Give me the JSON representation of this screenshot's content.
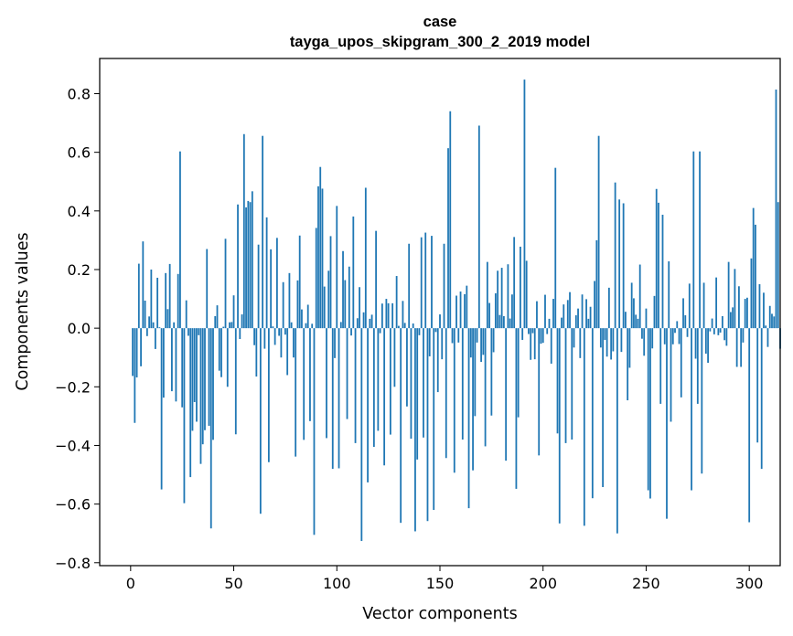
{
  "chart_data": {
    "type": "bar",
    "title": "case",
    "subtitle": "tayga_upos_skipgram_300_2_2019 model",
    "xlabel": "Vector components",
    "ylabel": "Components values",
    "xlim": [
      -15,
      315
    ],
    "ylim": [
      -0.81,
      0.92
    ],
    "x_ticks": [
      0,
      50,
      100,
      150,
      200,
      250,
      300
    ],
    "y_ticks": [
      -0.8,
      -0.6,
      -0.4,
      -0.2,
      0.0,
      0.2,
      0.4,
      0.6,
      0.8
    ],
    "x_tick_labels": [
      "0",
      "50",
      "100",
      "150",
      "200",
      "250",
      "300"
    ],
    "y_tick_labels": [
      "−0.8",
      "−0.6",
      "−0.4",
      "−0.2",
      "0.0",
      "0.2",
      "0.4",
      "0.6",
      "0.8"
    ],
    "bar_color": "#1f77b4",
    "grid": false,
    "values": [
      0.0,
      -0.163,
      -0.323,
      -0.168,
      0.22,
      -0.13,
      0.296,
      0.094,
      -0.027,
      0.04,
      0.2,
      0.02,
      -0.071,
      0.172,
      0.003,
      -0.55,
      -0.237,
      0.188,
      0.065,
      0.219,
      -0.215,
      0.02,
      -0.25,
      0.185,
      0.603,
      -0.27,
      -0.597,
      0.095,
      -0.026,
      -0.508,
      -0.35,
      -0.252,
      -0.319,
      -0.024,
      -0.463,
      -0.396,
      -0.348,
      0.27,
      -0.333,
      -0.683,
      -0.381,
      0.041,
      0.078,
      -0.145,
      -0.167,
      0.005,
      0.305,
      -0.2,
      0.02,
      0.021,
      0.112,
      -0.362,
      0.422,
      -0.037,
      0.047,
      0.662,
      0.412,
      0.434,
      0.43,
      0.467,
      -0.058,
      -0.165,
      0.285,
      -0.633,
      0.656,
      -0.07,
      0.378,
      -0.457,
      0.269,
      0.006,
      -0.057,
      0.308,
      -0.026,
      -0.1,
      0.157,
      -0.022,
      -0.16,
      0.188,
      0.02,
      -0.1,
      -0.438,
      0.163,
      0.316,
      0.064,
      -0.381,
      0.017,
      0.08,
      -0.317,
      0.015,
      -0.705,
      0.342,
      0.484,
      0.55,
      0.476,
      0.142,
      -0.375,
      0.196,
      0.314,
      -0.48,
      -0.102,
      0.417,
      -0.478,
      0.021,
      0.263,
      0.164,
      -0.31,
      0.21,
      -0.025,
      0.381,
      -0.392,
      0.034,
      0.14,
      -0.726,
      0.054,
      0.479,
      -0.526,
      0.032,
      0.046,
      -0.405,
      0.332,
      -0.35,
      -0.017,
      0.084,
      -0.468,
      0.1,
      0.085,
      -0.363,
      0.085,
      -0.2,
      0.178,
      0.008,
      -0.664,
      0.093,
      0.018,
      -0.267,
      0.288,
      -0.377,
      0.016,
      -0.693,
      -0.448,
      -0.024,
      0.31,
      -0.373,
      0.326,
      -0.658,
      -0.096,
      0.315,
      -0.62,
      -0.013,
      -0.218,
      0.047,
      -0.106,
      0.288,
      -0.443,
      0.614,
      0.74,
      -0.051,
      -0.493,
      0.111,
      -0.049,
      0.125,
      -0.38,
      0.116,
      0.145,
      -0.614,
      -0.1,
      -0.485,
      -0.3,
      -0.049,
      0.691,
      -0.115,
      -0.091,
      -0.403,
      0.226,
      0.086,
      -0.298,
      -0.082,
      0.119,
      0.196,
      0.045,
      0.206,
      0.041,
      -0.452,
      0.218,
      0.033,
      0.115,
      0.311,
      -0.548,
      -0.304,
      0.278,
      -0.04,
      0.848,
      0.23,
      -0.02,
      -0.108,
      -0.017,
      -0.106,
      0.092,
      -0.434,
      -0.053,
      -0.05,
      0.114,
      -0.02,
      0.032,
      -0.121,
      0.1,
      0.547,
      -0.359,
      -0.666,
      0.036,
      0.081,
      -0.392,
      0.096,
      0.123,
      -0.38,
      -0.066,
      0.044,
      0.067,
      -0.102,
      0.115,
      -0.674,
      0.099,
      0.032,
      0.073,
      -0.58,
      0.161,
      0.3,
      0.656,
      -0.066,
      -0.542,
      -0.04,
      -0.097,
      0.138,
      -0.107,
      -0.079,
      0.497,
      -0.7,
      0.439,
      -0.081,
      0.426,
      0.056,
      -0.246,
      -0.135,
      0.155,
      0.102,
      0.046,
      0.032,
      0.217,
      -0.036,
      -0.094,
      0.067,
      -0.553,
      -0.581,
      -0.069,
      0.11,
      0.475,
      0.428,
      -0.258,
      0.387,
      -0.055,
      -0.65,
      0.228,
      -0.319,
      -0.055,
      -0.016,
      0.024,
      -0.054,
      -0.236,
      0.102,
      0.044,
      -0.03,
      0.152,
      -0.553,
      0.603,
      -0.104,
      -0.258,
      0.603,
      -0.496,
      0.155,
      -0.087,
      -0.118,
      -0.011,
      0.033,
      -0.021,
      0.173,
      -0.024,
      -0.015,
      0.041,
      -0.041,
      -0.06,
      0.226,
      0.055,
      0.071,
      0.202,
      -0.132,
      0.143,
      -0.132,
      -0.049,
      0.1,
      0.104,
      -0.662,
      0.238,
      0.41,
      0.353,
      -0.39,
      0.15,
      -0.48,
      0.121,
      0.009,
      -0.064,
      0.076,
      0.049,
      0.04,
      0.814,
      0.43,
      -0.07
    ]
  }
}
